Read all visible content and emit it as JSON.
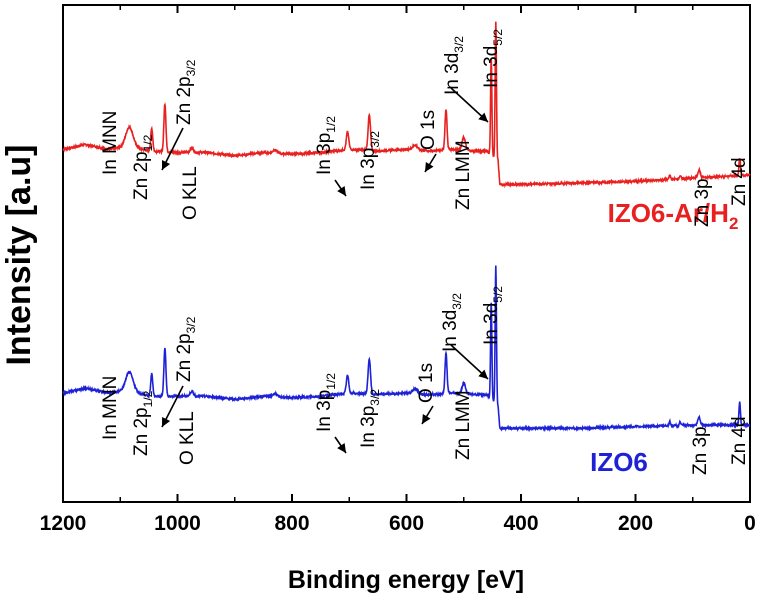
{
  "chart_data": {
    "type": "line",
    "title": "",
    "xlabel": "Binding energy [eV]",
    "ylabel": "Intensity [a.u]",
    "xlim": [
      1200,
      0
    ],
    "x_reversed": true,
    "x_ticks": [
      1200,
      1000,
      800,
      600,
      400,
      200,
      0
    ],
    "x_tick_labels": [
      "1200",
      "1000",
      "800",
      "600",
      "400",
      "200",
      "0"
    ],
    "ylim": [
      0,
      3.1
    ],
    "y_ticks_shown": false,
    "series": [
      {
        "name": "IZO6-Ar/H2",
        "label_main": "IZO6-Ar/H",
        "label_sub": "2",
        "color": "#e8201f",
        "baseline": 2.15,
        "background": [
          [
            1200,
            2.2
          ],
          [
            1160,
            2.23
          ],
          [
            1120,
            2.2
          ],
          [
            1085,
            2.22
          ],
          [
            1050,
            2.19
          ],
          [
            1000,
            2.18
          ],
          [
            950,
            2.18
          ],
          [
            900,
            2.16
          ],
          [
            850,
            2.18
          ],
          [
            800,
            2.17
          ],
          [
            750,
            2.18
          ],
          [
            700,
            2.2
          ],
          [
            650,
            2.19
          ],
          [
            600,
            2.2
          ],
          [
            560,
            2.19
          ],
          [
            520,
            2.2
          ],
          [
            480,
            2.19
          ],
          [
            460,
            2.19
          ],
          [
            440,
            2.13
          ],
          [
            437,
            1.98
          ],
          [
            420,
            1.98
          ],
          [
            300,
            1.99
          ],
          [
            200,
            2.0
          ],
          [
            100,
            2.02
          ],
          [
            0,
            2.04
          ]
        ],
        "peaks": [
          {
            "x": 1084,
            "h": 0.12,
            "w": 9
          },
          {
            "x": 1045,
            "h": 0.14,
            "w": 2.5
          },
          {
            "x": 1022,
            "h": 0.3,
            "w": 2.5
          },
          {
            "x": 975,
            "h": 0.03,
            "w": 4
          },
          {
            "x": 830,
            "h": 0.02,
            "w": 5
          },
          {
            "x": 703,
            "h": 0.11,
            "w": 3
          },
          {
            "x": 665,
            "h": 0.22,
            "w": 3
          },
          {
            "x": 585,
            "h": 0.03,
            "w": 6
          },
          {
            "x": 531,
            "h": 0.25,
            "w": 2.5
          },
          {
            "x": 500,
            "h": 0.08,
            "w": 4
          },
          {
            "x": 452,
            "h": 0.6,
            "w": 1.6
          },
          {
            "x": 444,
            "h": 0.85,
            "w": 1.6
          },
          {
            "x": 140,
            "h": 0.025,
            "w": 2
          },
          {
            "x": 122,
            "h": 0.02,
            "w": 2
          },
          {
            "x": 89,
            "h": 0.05,
            "w": 3
          },
          {
            "x": 18,
            "h": 0.11,
            "w": 1.8
          }
        ]
      },
      {
        "name": "IZO6",
        "label_main": "IZO6",
        "label_sub": "",
        "color": "#1e22d6",
        "baseline": 0.55,
        "background": [
          [
            1200,
            0.68
          ],
          [
            1160,
            0.71
          ],
          [
            1120,
            0.68
          ],
          [
            1085,
            0.7
          ],
          [
            1050,
            0.66
          ],
          [
            1000,
            0.66
          ],
          [
            950,
            0.66
          ],
          [
            900,
            0.64
          ],
          [
            850,
            0.66
          ],
          [
            800,
            0.65
          ],
          [
            750,
            0.66
          ],
          [
            700,
            0.68
          ],
          [
            650,
            0.67
          ],
          [
            600,
            0.68
          ],
          [
            560,
            0.67
          ],
          [
            520,
            0.68
          ],
          [
            480,
            0.67
          ],
          [
            460,
            0.67
          ],
          [
            440,
            0.6
          ],
          [
            437,
            0.46
          ],
          [
            420,
            0.46
          ],
          [
            300,
            0.46
          ],
          [
            200,
            0.47
          ],
          [
            100,
            0.48
          ],
          [
            0,
            0.48
          ]
        ],
        "peaks": [
          {
            "x": 1084,
            "h": 0.11,
            "w": 9
          },
          {
            "x": 1045,
            "h": 0.14,
            "w": 2.5
          },
          {
            "x": 1022,
            "h": 0.3,
            "w": 2.5
          },
          {
            "x": 975,
            "h": 0.03,
            "w": 4
          },
          {
            "x": 830,
            "h": 0.02,
            "w": 5
          },
          {
            "x": 703,
            "h": 0.11,
            "w": 3
          },
          {
            "x": 665,
            "h": 0.22,
            "w": 3
          },
          {
            "x": 585,
            "h": 0.03,
            "w": 6
          },
          {
            "x": 531,
            "h": 0.25,
            "w": 2.5
          },
          {
            "x": 500,
            "h": 0.07,
            "w": 4
          },
          {
            "x": 452,
            "h": 0.6,
            "w": 1.6
          },
          {
            "x": 444,
            "h": 0.86,
            "w": 1.6
          },
          {
            "x": 140,
            "h": 0.025,
            "w": 2
          },
          {
            "x": 122,
            "h": 0.02,
            "w": 2
          },
          {
            "x": 89,
            "h": 0.05,
            "w": 3
          },
          {
            "x": 18,
            "h": 0.14,
            "w": 1.8
          }
        ]
      }
    ],
    "annotations": [
      {
        "id": "in-mnn",
        "main": "In MNN",
        "sub": "",
        "energy": 1084
      },
      {
        "id": "zn-2p12",
        "main": "Zn 2p",
        "sub": "1/2",
        "energy": 1045
      },
      {
        "id": "zn-2p32",
        "main": "Zn 2p",
        "sub": "3/2",
        "energy": 1022
      },
      {
        "id": "o-kll",
        "main": "O KLL",
        "sub": "",
        "energy": 975
      },
      {
        "id": "in-3p12",
        "main": "In 3p",
        "sub": "1/2",
        "energy": 703
      },
      {
        "id": "in-3p32",
        "main": "In 3p",
        "sub": "3/2",
        "energy": 665
      },
      {
        "id": "o-1s",
        "main": "O 1s",
        "sub": "",
        "energy": 531
      },
      {
        "id": "zn-lmm",
        "main": "Zn LMM",
        "sub": "",
        "energy": 500
      },
      {
        "id": "in-3d32",
        "main": "In 3d",
        "sub": "3/2",
        "energy": 452
      },
      {
        "id": "in-3d52",
        "main": "In 3d",
        "sub": "5/2",
        "energy": 444
      },
      {
        "id": "zn-3p",
        "main": "Zn 3p",
        "sub": "",
        "energy": 89
      },
      {
        "id": "zn-4d",
        "main": "Zn 4d",
        "sub": "",
        "energy": 18
      }
    ]
  }
}
